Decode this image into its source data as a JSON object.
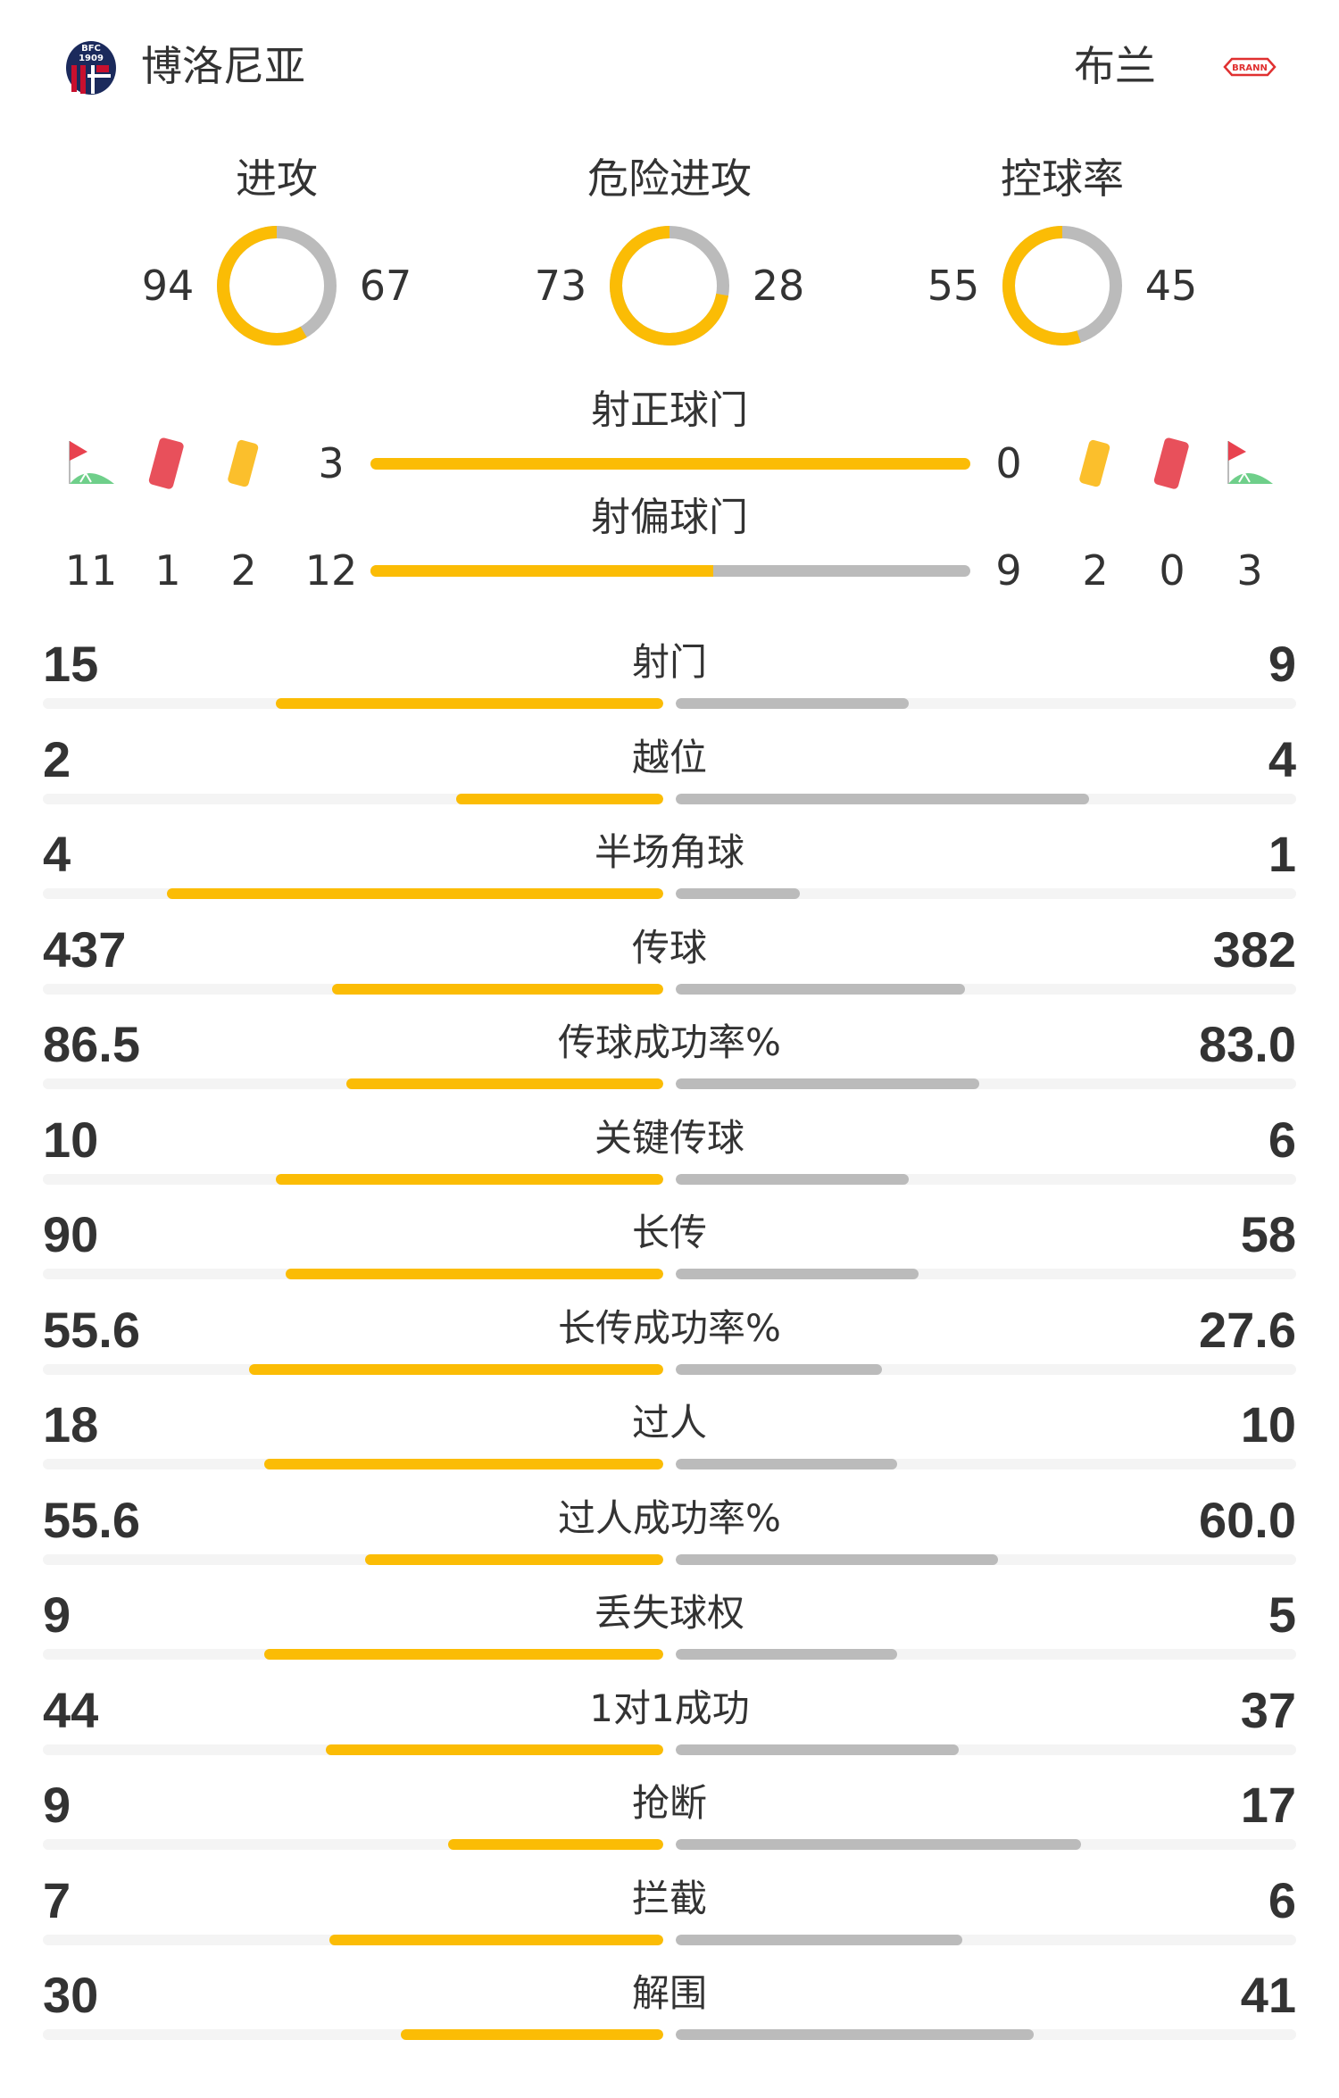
{
  "header": {
    "home_team": "博洛尼亚",
    "away_team": "布兰",
    "home_logo_text": "BFC 1909",
    "away_logo_text": "BRANN"
  },
  "colors": {
    "home": "#fbbc05",
    "away": "#bbbbbb",
    "track": "#f4f4f4",
    "text": "#333333"
  },
  "donuts": [
    {
      "title": "进攻",
      "home": "94",
      "away": "67"
    },
    {
      "title": "危险进攻",
      "home": "73",
      "away": "28"
    },
    {
      "title": "控球率",
      "home": "55",
      "away": "45"
    }
  ],
  "shots_on_target": {
    "title": "射正球门",
    "home": "3",
    "away": "0"
  },
  "shots_off_target": {
    "title": "射偏球门",
    "home": "12",
    "away": "9"
  },
  "home_summary": {
    "corners": "11",
    "red_cards": "1",
    "yellow_cards": "2"
  },
  "away_summary": {
    "yellow_cards": "2",
    "red_cards": "0",
    "corners": "3"
  },
  "icons": [
    "corner-flag-icon",
    "red-card-icon",
    "yellow-card-icon"
  ],
  "stats": [
    {
      "label": "射门",
      "home": "15",
      "away": "9"
    },
    {
      "label": "越位",
      "home": "2",
      "away": "4"
    },
    {
      "label": "半场角球",
      "home": "4",
      "away": "1"
    },
    {
      "label": "传球",
      "home": "437",
      "away": "382"
    },
    {
      "label": "传球成功率%",
      "home": "86.5",
      "away": "83.0"
    },
    {
      "label": "关键传球",
      "home": "10",
      "away": "6"
    },
    {
      "label": "长传",
      "home": "90",
      "away": "58"
    },
    {
      "label": "长传成功率%",
      "home": "55.6",
      "away": "27.6"
    },
    {
      "label": "过人",
      "home": "18",
      "away": "10"
    },
    {
      "label": "过人成功率%",
      "home": "55.6",
      "away": "60.0"
    },
    {
      "label": "丢失球权",
      "home": "9",
      "away": "5"
    },
    {
      "label": "1对1成功",
      "home": "44",
      "away": "37"
    },
    {
      "label": "抢断",
      "home": "9",
      "away": "17"
    },
    {
      "label": "拦截",
      "home": "7",
      "away": "6"
    },
    {
      "label": "解围",
      "home": "30",
      "away": "41"
    }
  ]
}
